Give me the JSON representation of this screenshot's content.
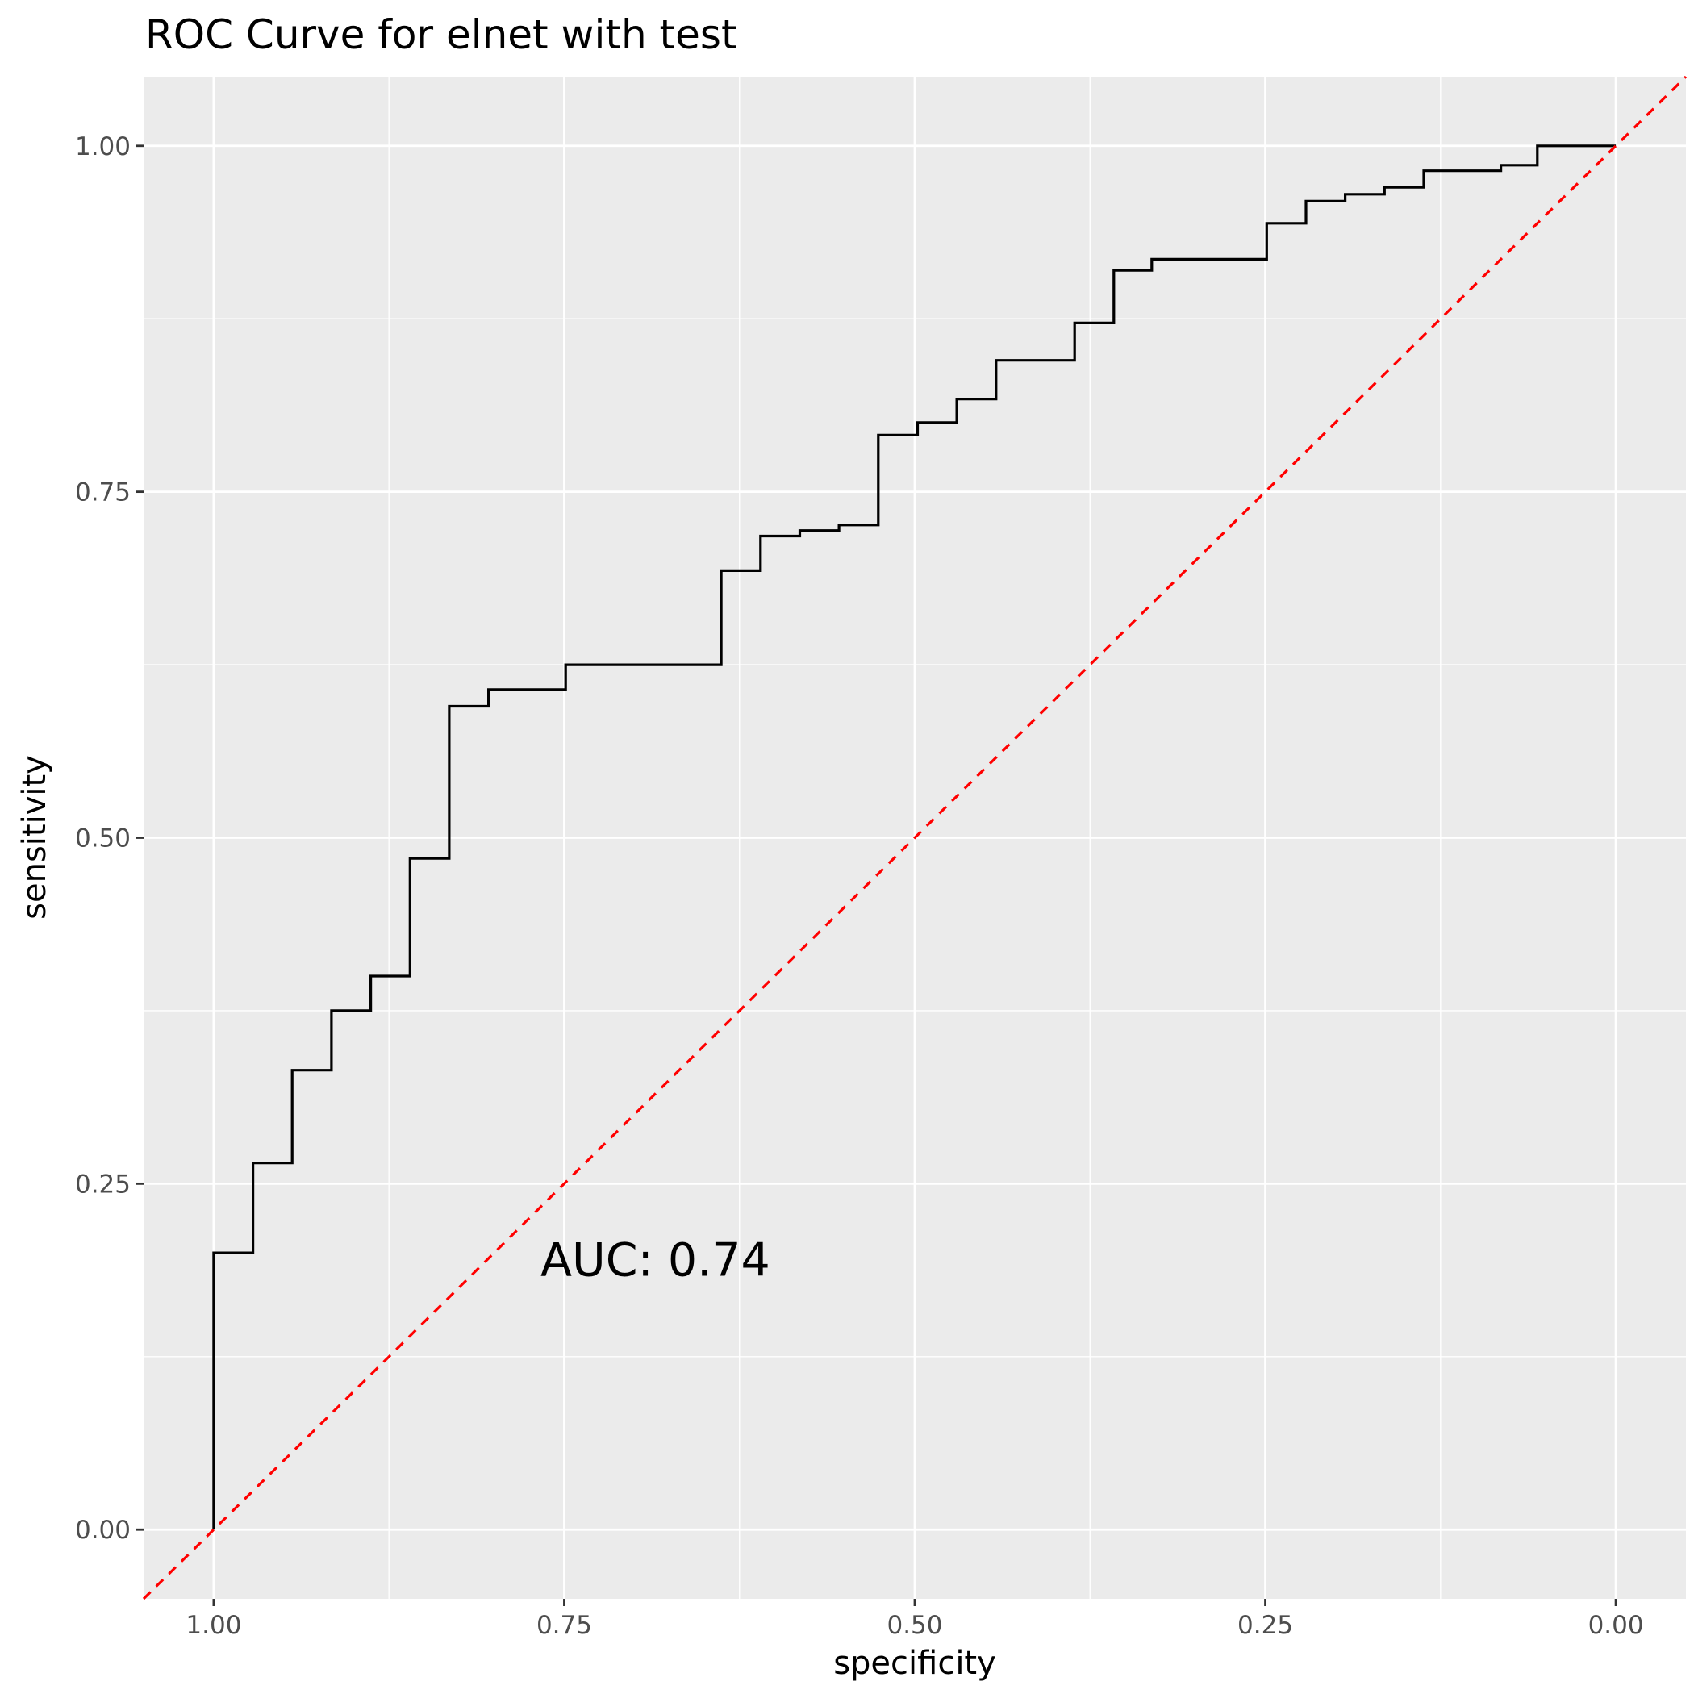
{
  "chart_data": {
    "type": "line",
    "title": "ROC Curve for elnet with test",
    "xlabel": "specificity",
    "ylabel": "sensitivity",
    "x_reversed": true,
    "xlim": [
      1.05,
      -0.05
    ],
    "ylim": [
      -0.05,
      1.05
    ],
    "x_ticks": [
      1.0,
      0.75,
      0.5,
      0.25,
      0.0
    ],
    "x_tick_labels": [
      "1.00",
      "0.75",
      "0.50",
      "0.25",
      "0.00"
    ],
    "y_ticks": [
      0.0,
      0.25,
      0.5,
      0.75,
      1.0
    ],
    "y_tick_labels": [
      "0.00",
      "0.25",
      "0.50",
      "0.75",
      "1.00"
    ],
    "grid": true,
    "background_color": "#ebebeb",
    "series": [
      {
        "style": "step",
        "color": "#000000",
        "points": [
          [
            1.0,
            0.0
          ],
          [
            1.0,
            0.2
          ],
          [
            0.972,
            0.2
          ],
          [
            0.972,
            0.265
          ],
          [
            0.944,
            0.265
          ],
          [
            0.944,
            0.332
          ],
          [
            0.916,
            0.332
          ],
          [
            0.916,
            0.375
          ],
          [
            0.888,
            0.375
          ],
          [
            0.888,
            0.4
          ],
          [
            0.86,
            0.4
          ],
          [
            0.86,
            0.485
          ],
          [
            0.832,
            0.485
          ],
          [
            0.832,
            0.595
          ],
          [
            0.804,
            0.595
          ],
          [
            0.804,
            0.607
          ],
          [
            0.749,
            0.607
          ],
          [
            0.749,
            0.625
          ],
          [
            0.638,
            0.625
          ],
          [
            0.638,
            0.693
          ],
          [
            0.61,
            0.693
          ],
          [
            0.61,
            0.718
          ],
          [
            0.582,
            0.718
          ],
          [
            0.582,
            0.722
          ],
          [
            0.554,
            0.722
          ],
          [
            0.554,
            0.726
          ],
          [
            0.526,
            0.726
          ],
          [
            0.526,
            0.791
          ],
          [
            0.498,
            0.791
          ],
          [
            0.498,
            0.8
          ],
          [
            0.47,
            0.8
          ],
          [
            0.47,
            0.817
          ],
          [
            0.442,
            0.817
          ],
          [
            0.442,
            0.845
          ],
          [
            0.386,
            0.845
          ],
          [
            0.386,
            0.872
          ],
          [
            0.358,
            0.872
          ],
          [
            0.358,
            0.91
          ],
          [
            0.331,
            0.91
          ],
          [
            0.331,
            0.918
          ],
          [
            0.249,
            0.918
          ],
          [
            0.249,
            0.944
          ],
          [
            0.221,
            0.944
          ],
          [
            0.221,
            0.96
          ],
          [
            0.193,
            0.96
          ],
          [
            0.193,
            0.965
          ],
          [
            0.165,
            0.965
          ],
          [
            0.165,
            0.97
          ],
          [
            0.137,
            0.97
          ],
          [
            0.137,
            0.982
          ],
          [
            0.082,
            0.982
          ],
          [
            0.082,
            0.986
          ],
          [
            0.056,
            0.986
          ],
          [
            0.056,
            1.0
          ],
          [
            0.0,
            1.0
          ]
        ]
      },
      {
        "style": "dashed",
        "color": "#ff0000",
        "points": [
          [
            1.05,
            -0.05
          ],
          [
            -0.05,
            1.05
          ]
        ]
      }
    ],
    "annotations": [
      {
        "text": "AUC: 0.74",
        "x": 0.685,
        "y": 0.195
      }
    ]
  }
}
